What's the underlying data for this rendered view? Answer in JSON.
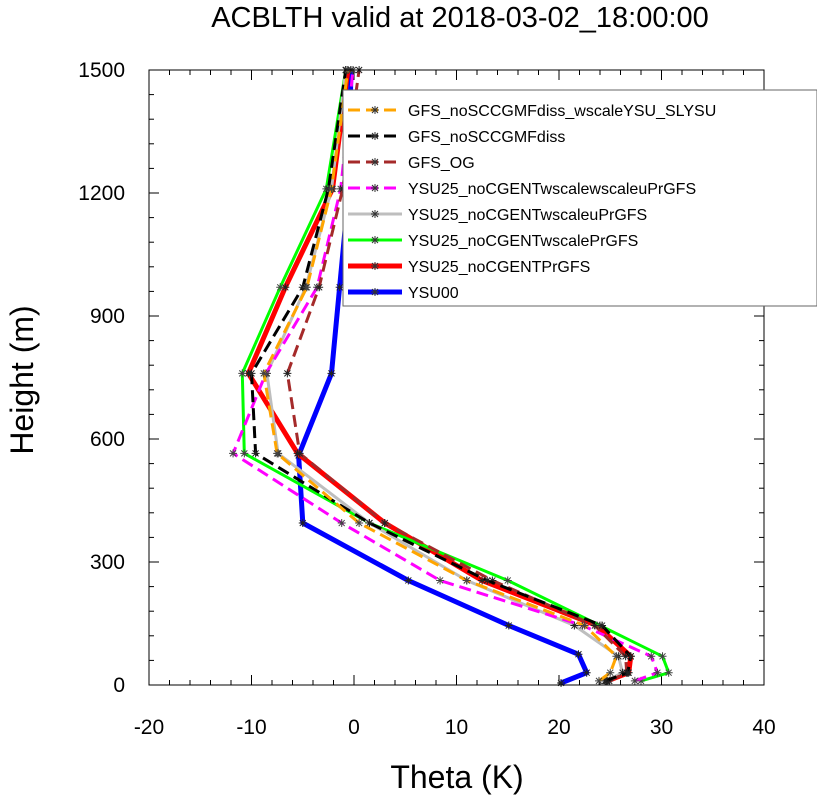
{
  "chart_data": {
    "type": "line",
    "title": "ACBLTH valid at 2018-03-02_18:00:00",
    "xlabel": "Theta (K)",
    "ylabel": "Height (m)",
    "xlim": [
      -20,
      40
    ],
    "ylim": [
      0,
      1500
    ],
    "x_ticks": [
      "-20",
      "-10",
      "0",
      "10",
      "20",
      "30",
      "40"
    ],
    "y_ticks": [
      "0",
      "300",
      "600",
      "900",
      "1200",
      "1500"
    ],
    "grid": false,
    "legend_position": "top-right",
    "series": [
      {
        "name": "GFS_noSCCGMFdiss_wscaleYSU_SLYSU",
        "color": "#FFA500",
        "dash": "dash",
        "width": 3,
        "marker": "star",
        "points": [
          [
            23.9,
            10
          ],
          [
            25.0,
            30
          ],
          [
            25.6,
            70
          ],
          [
            22.5,
            145
          ],
          [
            11,
            255
          ],
          [
            0.5,
            395
          ],
          [
            -7.5,
            565
          ],
          [
            -8.8,
            760
          ],
          [
            -4.6,
            970
          ],
          [
            -2.2,
            1210
          ],
          [
            -0.6,
            1500
          ]
        ]
      },
      {
        "name": "GFS_noSCCGMFdiss",
        "color": "#000000",
        "dash": "dash",
        "width": 3,
        "marker": "star",
        "points": [
          [
            24.5,
            10
          ],
          [
            26.7,
            30
          ],
          [
            27.0,
            70
          ],
          [
            24.2,
            145
          ],
          [
            13,
            255
          ],
          [
            1.5,
            395
          ],
          [
            -9.6,
            565
          ],
          [
            -10.0,
            760
          ],
          [
            -5.0,
            970
          ],
          [
            -2.5,
            1210
          ],
          [
            -0.8,
            1500
          ]
        ]
      },
      {
        "name": "GFS_OG",
        "color": "#A52A2A",
        "dash": "dash",
        "width": 3,
        "marker": "star",
        "points": [
          [
            24.9,
            10
          ],
          [
            26.6,
            30
          ],
          [
            26.5,
            70
          ],
          [
            23.5,
            145
          ],
          [
            13.5,
            255
          ],
          [
            3.0,
            395
          ],
          [
            -5.3,
            565
          ],
          [
            -6.5,
            760
          ],
          [
            -3.4,
            970
          ],
          [
            -1.1,
            1210
          ],
          [
            0.5,
            1500
          ]
        ]
      },
      {
        "name": "YSU25_noCGENTwscalewscaleuPrGFS",
        "color": "#FF00FF",
        "dash": "dash",
        "width": 3,
        "marker": "star",
        "points": [
          [
            27.4,
            10
          ],
          [
            29.6,
            30
          ],
          [
            29.0,
            70
          ],
          [
            22.3,
            145
          ],
          [
            8.4,
            255
          ],
          [
            -1.2,
            395
          ],
          [
            -11.8,
            565
          ],
          [
            -8.6,
            760
          ],
          [
            -3.6,
            970
          ],
          [
            -1.3,
            1210
          ],
          [
            -0.1,
            1500
          ]
        ]
      },
      {
        "name": "YSU25_noCGENTwscaleuPrGFS",
        "color": "#BEBEBE",
        "dash": "solid",
        "width": 3,
        "marker": "star",
        "points": [
          [
            24.6,
            10
          ],
          [
            26.2,
            30
          ],
          [
            25.8,
            70
          ],
          [
            21.5,
            145
          ],
          [
            11,
            255
          ],
          [
            1.5,
            395
          ],
          [
            -7.4,
            565
          ],
          [
            -8.5,
            760
          ],
          [
            -4.7,
            970
          ],
          [
            -2.2,
            1210
          ],
          [
            -0.8,
            1500
          ]
        ]
      },
      {
        "name": "YSU25_noCGENTwscalePrGFS",
        "color": "#00FF00",
        "dash": "solid",
        "width": 3,
        "marker": "star",
        "points": [
          [
            28.0,
            10
          ],
          [
            30.7,
            30
          ],
          [
            30.1,
            70
          ],
          [
            24.0,
            145
          ],
          [
            15.0,
            255
          ],
          [
            1.5,
            395
          ],
          [
            -10.7,
            565
          ],
          [
            -10.9,
            760
          ],
          [
            -7.2,
            970
          ],
          [
            -2.7,
            1210
          ],
          [
            -0.8,
            1500
          ]
        ]
      },
      {
        "name": "YSU25_noCGENTPrGFS",
        "color": "#FF0000",
        "dash": "solid",
        "width": 5,
        "marker": "star",
        "points": [
          [
            24.7,
            10
          ],
          [
            26.8,
            30
          ],
          [
            27.0,
            70
          ],
          [
            23.7,
            145
          ],
          [
            12.5,
            255
          ],
          [
            3.0,
            395
          ],
          [
            -5.5,
            565
          ],
          [
            -10.3,
            760
          ],
          [
            -6.7,
            970
          ],
          [
            -2.1,
            1210
          ],
          [
            -0.6,
            1500
          ]
        ]
      },
      {
        "name": "YSU00",
        "color": "#0000FF",
        "dash": "solid",
        "width": 5,
        "marker": "star",
        "points": [
          [
            20.2,
            5
          ],
          [
            22.7,
            30
          ],
          [
            21.9,
            75
          ],
          [
            15.1,
            145
          ],
          [
            5.3,
            255
          ],
          [
            -5.0,
            395
          ],
          [
            -5.4,
            560
          ],
          [
            -2.2,
            760
          ],
          [
            -1.4,
            970
          ],
          [
            -0.5,
            1210
          ],
          [
            -0.3,
            1500
          ]
        ]
      }
    ]
  }
}
